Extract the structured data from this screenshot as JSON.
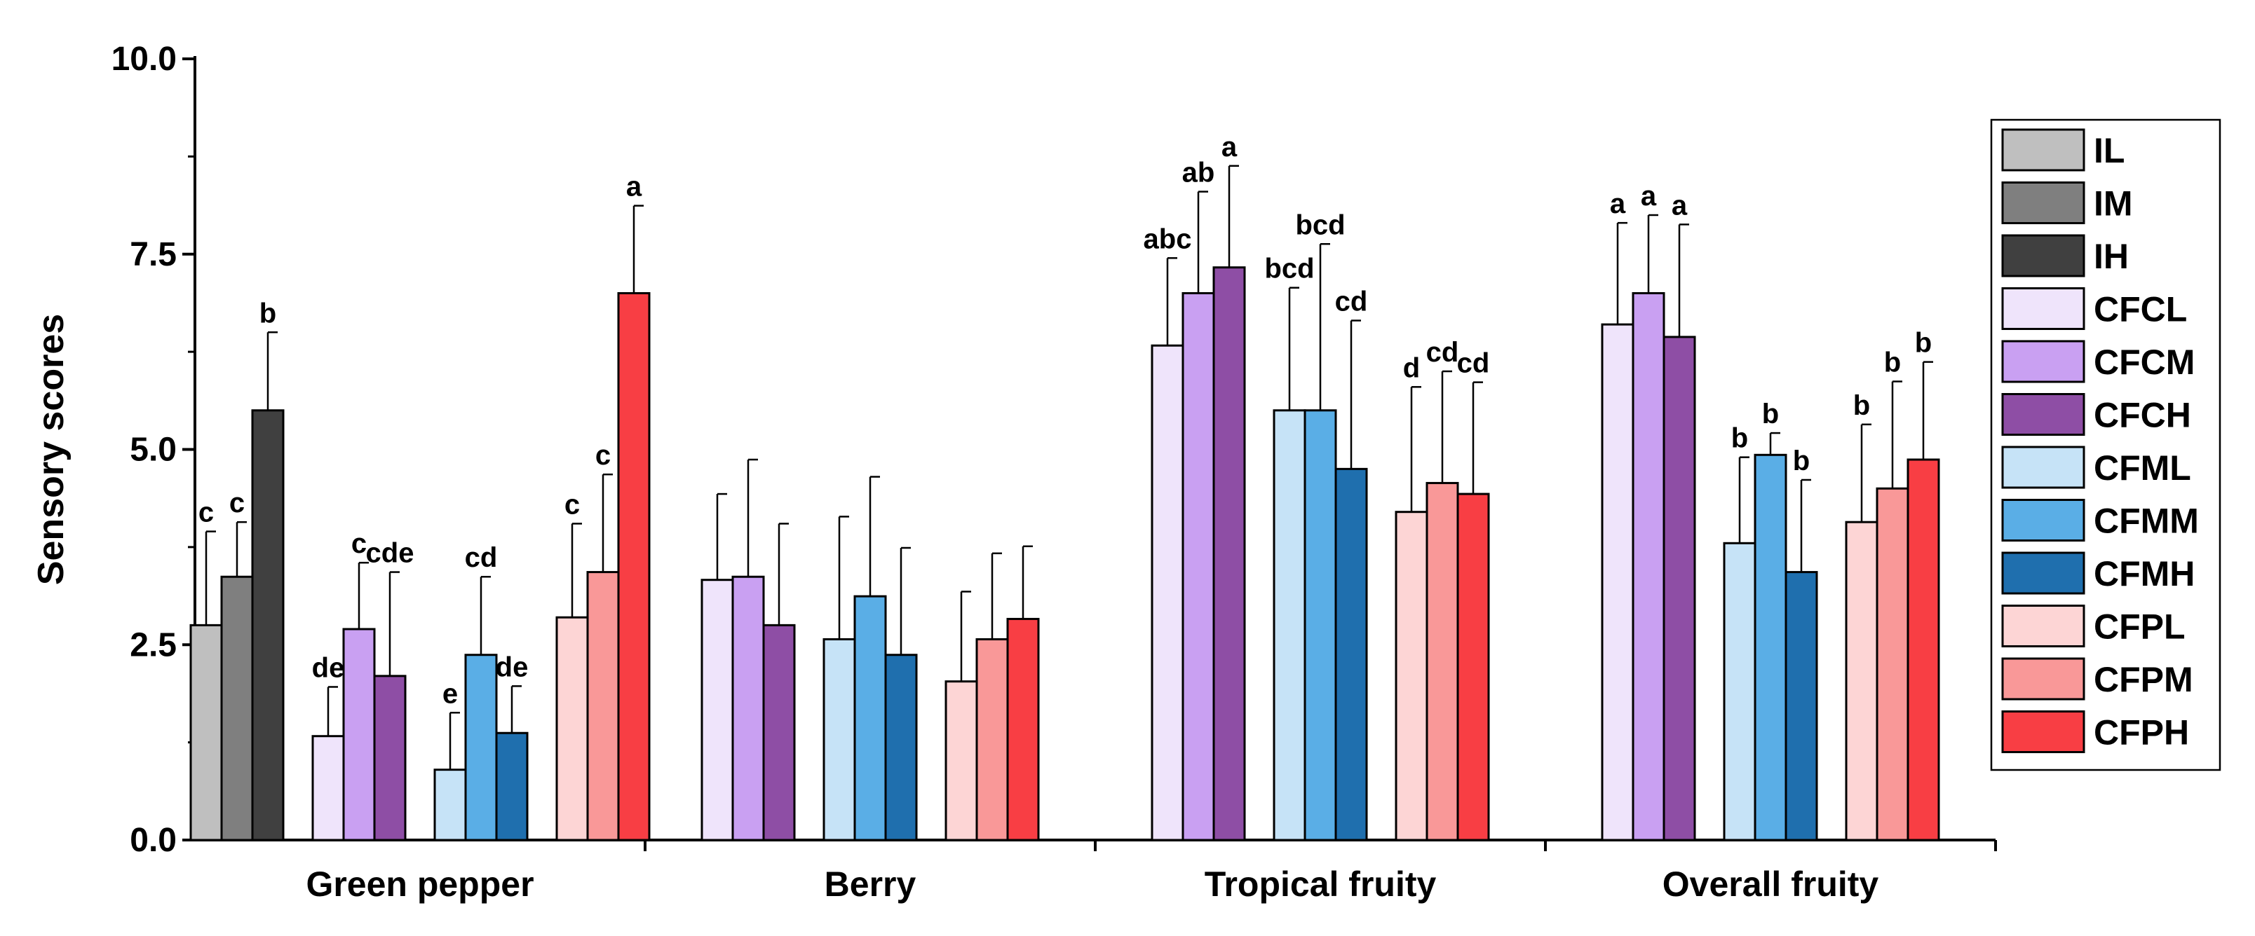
{
  "chart_data": {
    "type": "bar",
    "title": "",
    "xlabel": "",
    "ylabel": "Sensory scores",
    "ylim": [
      0,
      10
    ],
    "yticks": [
      "0.0",
      "2.5",
      "5.0",
      "7.5",
      "10.0"
    ],
    "grid": false,
    "legend_position": "right",
    "categories": [
      "Green pepper",
      "Berry",
      "Tropical fruity",
      "Overall fruity"
    ],
    "series": [
      {
        "name": "IL",
        "color": "#bfbfbf",
        "values": [
          2.75,
          null,
          null,
          null
        ],
        "errors": [
          1.2,
          null,
          null,
          null
        ],
        "labels": [
          "c",
          null,
          null,
          null
        ]
      },
      {
        "name": "IM",
        "color": "#7f7f7f",
        "values": [
          3.37,
          null,
          null,
          null
        ],
        "errors": [
          0.7,
          null,
          null,
          null
        ],
        "labels": [
          "c",
          null,
          null,
          null
        ]
      },
      {
        "name": "IH",
        "color": "#404040",
        "values": [
          5.5,
          null,
          null,
          null
        ],
        "errors": [
          1.0,
          null,
          null,
          null
        ],
        "labels": [
          "b",
          null,
          null,
          null
        ]
      },
      {
        "name": "CFCL",
        "color": "#efe4fb",
        "values": [
          1.33,
          3.33,
          6.33,
          6.6
        ],
        "errors": [
          0.63,
          1.1,
          1.12,
          1.3
        ],
        "labels": [
          "de",
          null,
          "abc",
          "a"
        ]
      },
      {
        "name": "CFCM",
        "color": "#c9a0f2",
        "values": [
          2.7,
          3.37,
          7.0,
          7.0
        ],
        "errors": [
          0.85,
          1.5,
          1.3,
          1.0
        ],
        "labels": [
          "c",
          null,
          "ab",
          "a"
        ]
      },
      {
        "name": "CFCH",
        "color": "#8e4ea5",
        "values": [
          2.1,
          2.75,
          7.33,
          6.44
        ],
        "errors": [
          1.33,
          1.3,
          1.3,
          1.44
        ],
        "labels": [
          "cde",
          null,
          "a",
          "a"
        ]
      },
      {
        "name": "CFML",
        "color": "#c6e3f7",
        "values": [
          0.9,
          2.57,
          5.5,
          3.8
        ],
        "errors": [
          0.73,
          1.57,
          1.57,
          1.1
        ],
        "labels": [
          "e",
          null,
          "bcd",
          "b"
        ]
      },
      {
        "name": "CFMM",
        "color": "#5aaee6",
        "values": [
          2.37,
          3.12,
          5.5,
          4.93
        ],
        "errors": [
          1.0,
          1.53,
          2.13,
          0.28
        ],
        "labels": [
          "cd",
          null,
          "bcd",
          "b"
        ]
      },
      {
        "name": "CFMH",
        "color": "#1f6fae",
        "values": [
          1.37,
          2.37,
          4.75,
          3.43
        ],
        "errors": [
          0.6,
          1.37,
          1.9,
          1.18
        ],
        "labels": [
          "de",
          null,
          "cd",
          "b"
        ]
      },
      {
        "name": "CFPL",
        "color": "#fdd5d5",
        "values": [
          2.85,
          2.03,
          4.2,
          4.07
        ],
        "errors": [
          1.2,
          1.15,
          1.6,
          1.25
        ],
        "labels": [
          "c",
          null,
          "d",
          "b"
        ]
      },
      {
        "name": "CFPM",
        "color": "#f99898",
        "values": [
          3.43,
          2.57,
          4.57,
          4.5
        ],
        "errors": [
          1.25,
          1.1,
          1.43,
          1.37
        ],
        "labels": [
          "c",
          null,
          "cd",
          "b"
        ]
      },
      {
        "name": "CFPH",
        "color": "#f83e44",
        "values": [
          7.0,
          2.83,
          4.43,
          4.87
        ],
        "errors": [
          1.12,
          0.93,
          1.43,
          1.25
        ],
        "labels": [
          "a",
          null,
          "cd",
          "b"
        ]
      }
    ]
  }
}
